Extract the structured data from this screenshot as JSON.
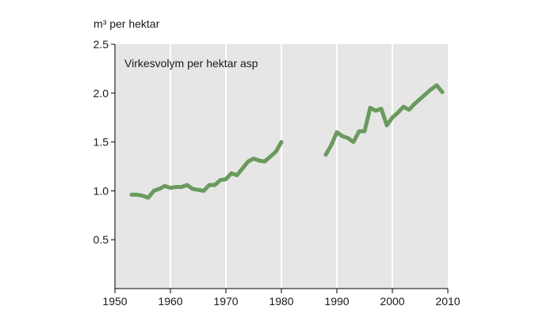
{
  "chart_data": {
    "type": "line",
    "title": "",
    "ylabel": "m³ per hektar",
    "xlabel": "",
    "xlim": [
      1950,
      2010
    ],
    "ylim": [
      0,
      2.5
    ],
    "x_ticks": [
      1950,
      1960,
      1970,
      1980,
      1990,
      2000,
      2010
    ],
    "y_ticks": [
      0.5,
      1.0,
      1.5,
      2.0,
      2.5
    ],
    "y_tick_labels": [
      "0.5",
      "1.0",
      "1.5",
      "2.0",
      "2.5"
    ],
    "grid": "vertical",
    "annotation": "Virkesvolym per hektar asp",
    "background": "#e6e6e6",
    "line_color": "#6a9a5e",
    "series": [
      {
        "segments": [
          [
            [
              1953,
              0.96
            ],
            [
              1954,
              0.96
            ],
            [
              1955,
              0.95
            ],
            [
              1956,
              0.93
            ],
            [
              1957,
              1.0
            ],
            [
              1958,
              1.02
            ],
            [
              1959,
              1.05
            ],
            [
              1960,
              1.03
            ],
            [
              1961,
              1.04
            ],
            [
              1962,
              1.04
            ],
            [
              1963,
              1.06
            ],
            [
              1964,
              1.02
            ],
            [
              1965,
              1.01
            ],
            [
              1966,
              1.0
            ],
            [
              1967,
              1.06
            ],
            [
              1968,
              1.06
            ],
            [
              1969,
              1.11
            ],
            [
              1970,
              1.12
            ],
            [
              1971,
              1.18
            ],
            [
              1972,
              1.16
            ],
            [
              1973,
              1.23
            ],
            [
              1974,
              1.3
            ],
            [
              1975,
              1.33
            ],
            [
              1976,
              1.31
            ],
            [
              1977,
              1.3
            ],
            [
              1978,
              1.35
            ],
            [
              1979,
              1.4
            ],
            [
              1980,
              1.5
            ]
          ],
          [
            [
              1988,
              1.37
            ],
            [
              1989,
              1.47
            ],
            [
              1990,
              1.6
            ],
            [
              1991,
              1.56
            ],
            [
              1992,
              1.54
            ],
            [
              1993,
              1.5
            ],
            [
              1994,
              1.61
            ],
            [
              1995,
              1.61
            ],
            [
              1996,
              1.85
            ],
            [
              1997,
              1.82
            ],
            [
              1998,
              1.84
            ],
            [
              1999,
              1.67
            ],
            [
              2000,
              1.75
            ],
            [
              2001,
              1.8
            ],
            [
              2002,
              1.86
            ],
            [
              2003,
              1.83
            ],
            [
              2004,
              1.89
            ],
            [
              2005,
              1.94
            ],
            [
              2006,
              1.99
            ],
            [
              2007,
              2.04
            ],
            [
              2008,
              2.08
            ],
            [
              2009,
              2.01
            ]
          ]
        ]
      }
    ]
  }
}
